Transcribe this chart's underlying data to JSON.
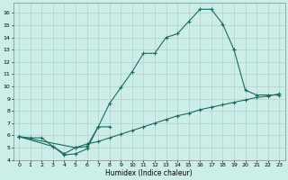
{
  "xlabel": "Humidex (Indice chaleur)",
  "bg_color": "#cceee8",
  "grid_color": "#b0c8c4",
  "line_color": "#1a6b60",
  "xlim": [
    -0.5,
    23.5
  ],
  "ylim": [
    4,
    16.8
  ],
  "xticks": [
    0,
    1,
    2,
    3,
    4,
    5,
    6,
    7,
    8,
    9,
    10,
    11,
    12,
    13,
    14,
    15,
    16,
    17,
    18,
    19,
    20,
    21,
    22,
    23
  ],
  "yticks": [
    4,
    5,
    6,
    7,
    8,
    9,
    10,
    11,
    12,
    13,
    14,
    15,
    16
  ],
  "curve1_x": [
    0,
    1,
    2,
    3,
    4,
    5,
    6,
    7,
    8,
    9,
    10,
    11,
    12,
    13,
    14,
    15,
    16,
    17,
    18,
    19
  ],
  "curve1_y": [
    5.9,
    5.8,
    5.8,
    5.1,
    4.5,
    5.0,
    5.1,
    6.7,
    8.6,
    9.9,
    11.2,
    12.7,
    12.7,
    14.0,
    14.3,
    15.3,
    16.3,
    16.3,
    15.1,
    13.0
  ],
  "curve2a_x": [
    0,
    3,
    4,
    5,
    6,
    7,
    8
  ],
  "curve2a_y": [
    5.9,
    5.1,
    4.4,
    4.5,
    4.9,
    6.7,
    6.7
  ],
  "curve2b_x": [
    19,
    20,
    21,
    22,
    23
  ],
  "curve2b_y": [
    13.0,
    9.7,
    9.3,
    9.3,
    9.3
  ],
  "curve3_x": [
    0,
    5,
    6,
    7,
    8,
    9,
    10,
    11,
    12,
    13,
    14,
    15,
    16,
    17,
    18,
    19,
    20,
    21,
    22,
    23
  ],
  "curve3_y": [
    5.9,
    5.0,
    5.3,
    5.5,
    5.8,
    6.1,
    6.4,
    6.7,
    7.0,
    7.3,
    7.6,
    7.8,
    8.1,
    8.3,
    8.5,
    8.7,
    8.9,
    9.1,
    9.2,
    9.4
  ]
}
